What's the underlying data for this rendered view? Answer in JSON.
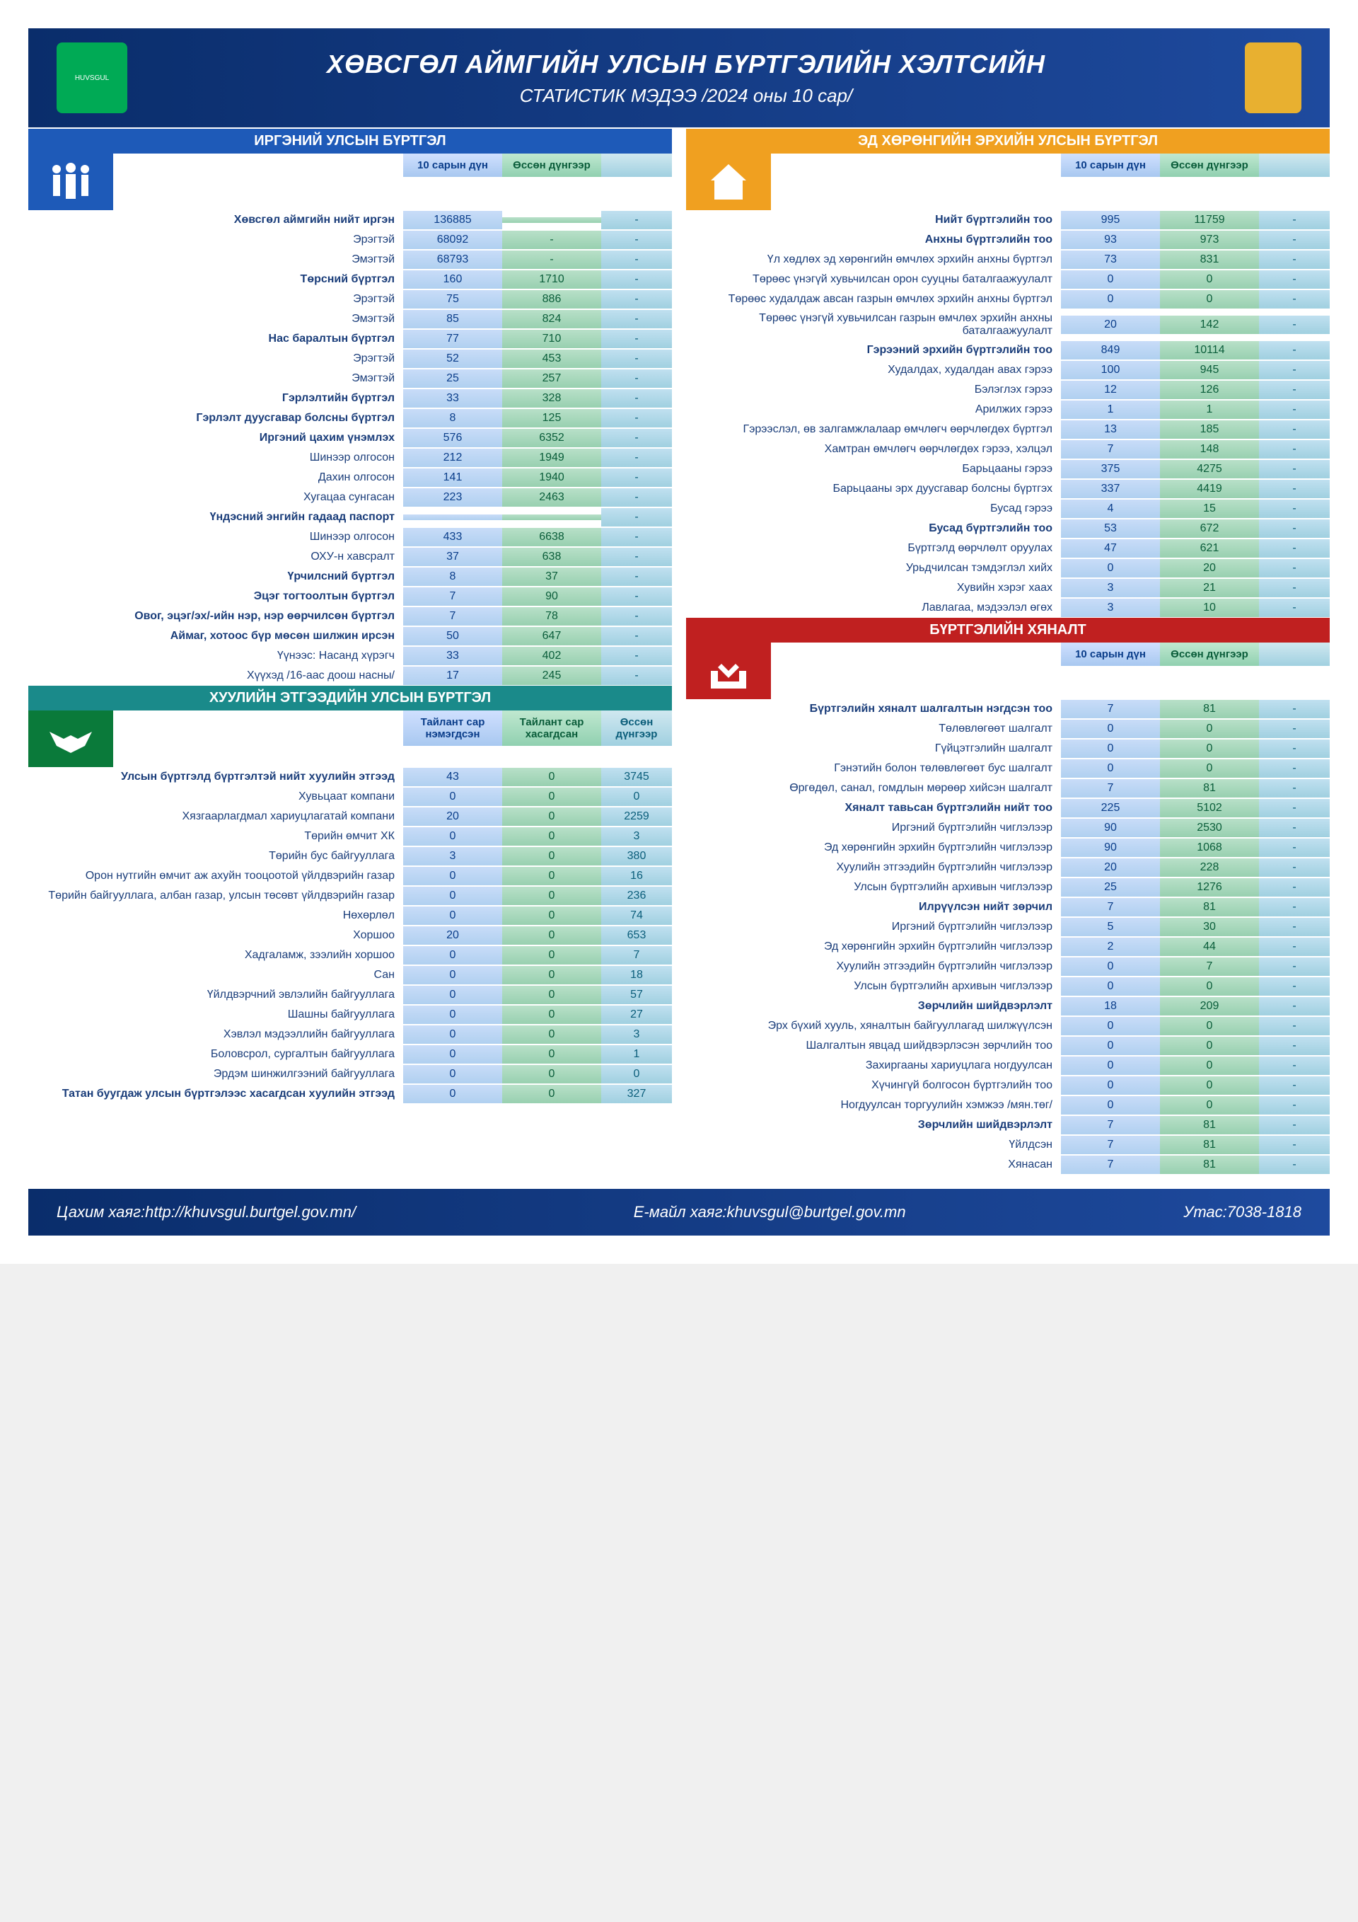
{
  "header": {
    "title": "ХӨВСГӨЛ АЙМГИЙН УЛСЫН БҮРТГЭЛИЙН ХЭЛТСИЙН",
    "subtitle": "СТАТИСТИК МЭДЭЭ /2024 оны 10 сар/"
  },
  "sections": {
    "civil": {
      "title": "ИРГЭНИЙ УЛСЫН БҮРТГЭЛ",
      "col1": "10 сарын дүн",
      "col2": "Өссөн дүнгээр"
    },
    "property": {
      "title": "ЭД ХӨРӨНГИЙН ЭРХИЙН УЛСЫН БҮРТГЭЛ",
      "col1": "10 сарын дүн",
      "col2": "Өссөн дүнгээр"
    },
    "legal": {
      "title": "ХУУЛИЙН ЭТГЭЭДИЙН УЛСЫН БҮРТГЭЛ",
      "col1": "Тайлант сар нэмэгдсэн",
      "col2": "Тайлант сар хасагдсан",
      "col3": "Өссөн дүнгээр"
    },
    "control": {
      "title": "БҮРТГЭЛИЙН ХЯНАЛТ",
      "col1": "10 сарын дүн",
      "col2": "Өссөн дүнгээр"
    }
  },
  "civil": [
    {
      "label": "Хөвсгөл аймгийн нийт иргэн",
      "v1": "136885",
      "v2": "",
      "bold": true
    },
    {
      "label": "Эрэгтэй",
      "v1": "68092",
      "v2": "-"
    },
    {
      "label": "Эмэгтэй",
      "v1": "68793",
      "v2": "-"
    },
    {
      "label": "Төрсний бүртгэл",
      "v1": "160",
      "v2": "1710",
      "bold": true
    },
    {
      "label": "Эрэгтэй",
      "v1": "75",
      "v2": "886"
    },
    {
      "label": "Эмэгтэй",
      "v1": "85",
      "v2": "824"
    },
    {
      "label": "Нас баралтын бүртгэл",
      "v1": "77",
      "v2": "710",
      "bold": true
    },
    {
      "label": "Эрэгтэй",
      "v1": "52",
      "v2": "453"
    },
    {
      "label": "Эмэгтэй",
      "v1": "25",
      "v2": "257"
    },
    {
      "label": "Гэрлэлтийн бүртгэл",
      "v1": "33",
      "v2": "328",
      "bold": true
    },
    {
      "label": "Гэрлэлт дуусгавар болсны бүртгэл",
      "v1": "8",
      "v2": "125",
      "bold": true
    },
    {
      "label": "Иргэний цахим үнэмлэх",
      "v1": "576",
      "v2": "6352",
      "bold": true
    },
    {
      "label": "Шинээр олгосон",
      "v1": "212",
      "v2": "1949"
    },
    {
      "label": "Дахин олгосон",
      "v1": "141",
      "v2": "1940"
    },
    {
      "label": "Хугацаа сунгасан",
      "v1": "223",
      "v2": "2463"
    },
    {
      "label": "Үндэсний энгийн гадаад паспорт",
      "v1": "",
      "v2": "",
      "bold": true
    },
    {
      "label": "Шинээр олгосон",
      "v1": "433",
      "v2": "6638"
    },
    {
      "label": "ОХУ-н хавсралт",
      "v1": "37",
      "v2": "638"
    },
    {
      "label": "Үрчилсний бүртгэл",
      "v1": "8",
      "v2": "37",
      "bold": true
    },
    {
      "label": "Эцэг тогтоолтын бүртгэл",
      "v1": "7",
      "v2": "90",
      "bold": true
    },
    {
      "label": "Овог, эцэг/эх/-ийн нэр, нэр өөрчилсөн бүртгэл",
      "v1": "7",
      "v2": "78",
      "bold": true
    },
    {
      "label": "Аймаг, хотоос бүр мөсөн шилжин ирсэн",
      "v1": "50",
      "v2": "647",
      "bold": true
    },
    {
      "label": "Үүнээс: Насанд хүрэгч",
      "v1": "33",
      "v2": "402"
    },
    {
      "label": "Хүүхэд /16-аас доош насны/",
      "v1": "17",
      "v2": "245"
    }
  ],
  "property": [
    {
      "label": "Нийт бүртгэлийн тоо",
      "v1": "995",
      "v2": "11759",
      "bold": true
    },
    {
      "label": "Анхны бүртгэлийн тоо",
      "v1": "93",
      "v2": "973",
      "bold": true
    },
    {
      "label": "Үл хөдлөх эд хөрөнгийн өмчлөх эрхийн анхны бүртгэл",
      "v1": "73",
      "v2": "831"
    },
    {
      "label": "Төрөөс үнэгүй хувьчилсан орон сууцны баталгаажуулалт",
      "v1": "0",
      "v2": "0"
    },
    {
      "label": "Төрөөс худалдаж авсан газрын өмчлөх эрхийн анхны бүртгэл",
      "v1": "0",
      "v2": "0"
    },
    {
      "label": "Төрөөс үнэгүй хувьчилсан газрын өмчлөх эрхийн анхны баталгаажуулалт",
      "v1": "20",
      "v2": "142"
    },
    {
      "label": "Гэрээний эрхийн бүртгэлийн тоо",
      "v1": "849",
      "v2": "10114",
      "bold": true
    },
    {
      "label": "Худалдах, худалдан авах гэрээ",
      "v1": "100",
      "v2": "945"
    },
    {
      "label": "Бэлэглэх гэрээ",
      "v1": "12",
      "v2": "126"
    },
    {
      "label": "Арилжих гэрээ",
      "v1": "1",
      "v2": "1"
    },
    {
      "label": "Гэрээслэл, өв залгамжлалаар өмчлөгч өөрчлөгдөх бүртгэл",
      "v1": "13",
      "v2": "185"
    },
    {
      "label": "Хамтран өмчлөгч өөрчлөгдөх гэрээ, хэлцэл",
      "v1": "7",
      "v2": "148"
    },
    {
      "label": "Барьцааны гэрээ",
      "v1": "375",
      "v2": "4275"
    },
    {
      "label": "Барьцааны эрх дуусгавар болсны бүртгэх",
      "v1": "337",
      "v2": "4419"
    },
    {
      "label": "Бусад гэрээ",
      "v1": "4",
      "v2": "15"
    },
    {
      "label": "Бусад бүртгэлийн тоо",
      "v1": "53",
      "v2": "672",
      "bold": true
    },
    {
      "label": "Бүртгэлд өөрчлөлт оруулах",
      "v1": "47",
      "v2": "621"
    },
    {
      "label": "Урьдчилсан тэмдэглэл хийх",
      "v1": "0",
      "v2": "20"
    },
    {
      "label": "Хувийн хэрэг хаах",
      "v1": "3",
      "v2": "21"
    },
    {
      "label": "Лавлагаа, мэдээлэл өгөх",
      "v1": "3",
      "v2": "10"
    }
  ],
  "legal": [
    {
      "label": "Улсын бүртгэлд бүртгэлтэй нийт хуулийн этгээд",
      "v1": "43",
      "v2": "0",
      "v3": "3745",
      "bold": true
    },
    {
      "label": "Хувьцаат компани",
      "v1": "0",
      "v2": "0",
      "v3": "0"
    },
    {
      "label": "Хязгаарлагдмал хариуцлагатай компани",
      "v1": "20",
      "v2": "0",
      "v3": "2259"
    },
    {
      "label": "Төрийн өмчит ХК",
      "v1": "0",
      "v2": "0",
      "v3": "3"
    },
    {
      "label": "Төрийн бус байгууллага",
      "v1": "3",
      "v2": "0",
      "v3": "380"
    },
    {
      "label": "Орон нутгийн өмчит аж ахуйн тооцоотой үйлдвэрийн газар",
      "v1": "0",
      "v2": "0",
      "v3": "16"
    },
    {
      "label": "Төрийн байгууллага, албан газар, улсын төсөвт үйлдвэрийн газар",
      "v1": "0",
      "v2": "0",
      "v3": "236"
    },
    {
      "label": "Нөхөрлөл",
      "v1": "0",
      "v2": "0",
      "v3": "74"
    },
    {
      "label": "Хоршоо",
      "v1": "20",
      "v2": "0",
      "v3": "653"
    },
    {
      "label": "Хадгаламж, зээлийн хоршоо",
      "v1": "0",
      "v2": "0",
      "v3": "7"
    },
    {
      "label": "Сан",
      "v1": "0",
      "v2": "0",
      "v3": "18"
    },
    {
      "label": "Үйлдвэрчний эвлэлийн байгууллага",
      "v1": "0",
      "v2": "0",
      "v3": "57"
    },
    {
      "label": "Шашны байгууллага",
      "v1": "0",
      "v2": "0",
      "v3": "27"
    },
    {
      "label": "Хэвлэл мэдээллийн байгууллага",
      "v1": "0",
      "v2": "0",
      "v3": "3"
    },
    {
      "label": "Боловсрол, сургалтын байгууллага",
      "v1": "0",
      "v2": "0",
      "v3": "1"
    },
    {
      "label": "Эрдэм шинжилгээний байгууллага",
      "v1": "0",
      "v2": "0",
      "v3": "0"
    },
    {
      "label": "Татан буугдаж улсын бүртгэлээс хасагдсан хуулийн этгээд",
      "v1": "0",
      "v2": "0",
      "v3": "327",
      "bold": true
    }
  ],
  "control": [
    {
      "label": "Бүртгэлийн хяналт шалгалтын нэгдсэн тоо",
      "v1": "7",
      "v2": "81",
      "bold": true
    },
    {
      "label": "Төлөвлөгөөт шалгалт",
      "v1": "0",
      "v2": "0"
    },
    {
      "label": "Гүйцэтгэлийн шалгалт",
      "v1": "0",
      "v2": "0"
    },
    {
      "label": "Гэнэтийн болон төлөвлөгөөт бус шалгалт",
      "v1": "0",
      "v2": "0"
    },
    {
      "label": "Өргөдөл, санал, гомдлын мөрөөр хийсэн шалгалт",
      "v1": "7",
      "v2": "81"
    },
    {
      "label": "Хяналт тавьсан бүртгэлийн нийт тоо",
      "v1": "225",
      "v2": "5102",
      "bold": true
    },
    {
      "label": "Иргэний бүртгэлийн чиглэлээр",
      "v1": "90",
      "v2": "2530"
    },
    {
      "label": "Эд хөрөнгийн эрхийн бүртгэлийн чиглэлээр",
      "v1": "90",
      "v2": "1068"
    },
    {
      "label": "Хуулийн этгээдийн бүртгэлийн чиглэлээр",
      "v1": "20",
      "v2": "228"
    },
    {
      "label": "Улсын бүртгэлийн архивын чиглэлээр",
      "v1": "25",
      "v2": "1276"
    },
    {
      "label": "Илрүүлсэн нийт зөрчил",
      "v1": "7",
      "v2": "81",
      "bold": true
    },
    {
      "label": "Иргэний бүртгэлийн чиглэлээр",
      "v1": "5",
      "v2": "30"
    },
    {
      "label": "Эд хөрөнгийн эрхийн бүртгэлийн чиглэлээр",
      "v1": "2",
      "v2": "44"
    },
    {
      "label": "Хуулийн этгээдийн бүртгэлийн чиглэлээр",
      "v1": "0",
      "v2": "7"
    },
    {
      "label": "Улсын бүртгэлийн архивын чиглэлээр",
      "v1": "0",
      "v2": "0"
    },
    {
      "label": "Зөрчлийн шийдвэрлэлт",
      "v1": "18",
      "v2": "209",
      "bold": true
    },
    {
      "label": "Эрх бүхий хууль, хяналтын байгууллагад шилжүүлсэн",
      "v1": "0",
      "v2": "0"
    },
    {
      "label": "Шалгалтын явцад шийдвэрлэсэн зөрчлийн тоо",
      "v1": "0",
      "v2": "0"
    },
    {
      "label": "Захиргааны хариуцлага ногдуулсан",
      "v1": "0",
      "v2": "0"
    },
    {
      "label": "Хүчингүй болгосон бүртгэлийн тоо",
      "v1": "0",
      "v2": "0"
    },
    {
      "label": "Ногдуулсан торгуулийн хэмжээ /мян.төг/",
      "v1": "0",
      "v2": "0"
    },
    {
      "label": "Зөрчлийн шийдвэрлэлт",
      "v1": "7",
      "v2": "81",
      "bold": true
    },
    {
      "label": "Үйлдсэн",
      "v1": "7",
      "v2": "81"
    },
    {
      "label": "Хянасан",
      "v1": "7",
      "v2": "81"
    }
  ],
  "footer": {
    "url_label": "Цахим хаяг:",
    "url": "http://khuvsgul.burtgel.gov.mn/",
    "email_label": "Е-майл хаяг:",
    "email": "khuvsgul@burtgel.gov.mn",
    "phone_label": "Утас:",
    "phone": "7038-1818"
  }
}
